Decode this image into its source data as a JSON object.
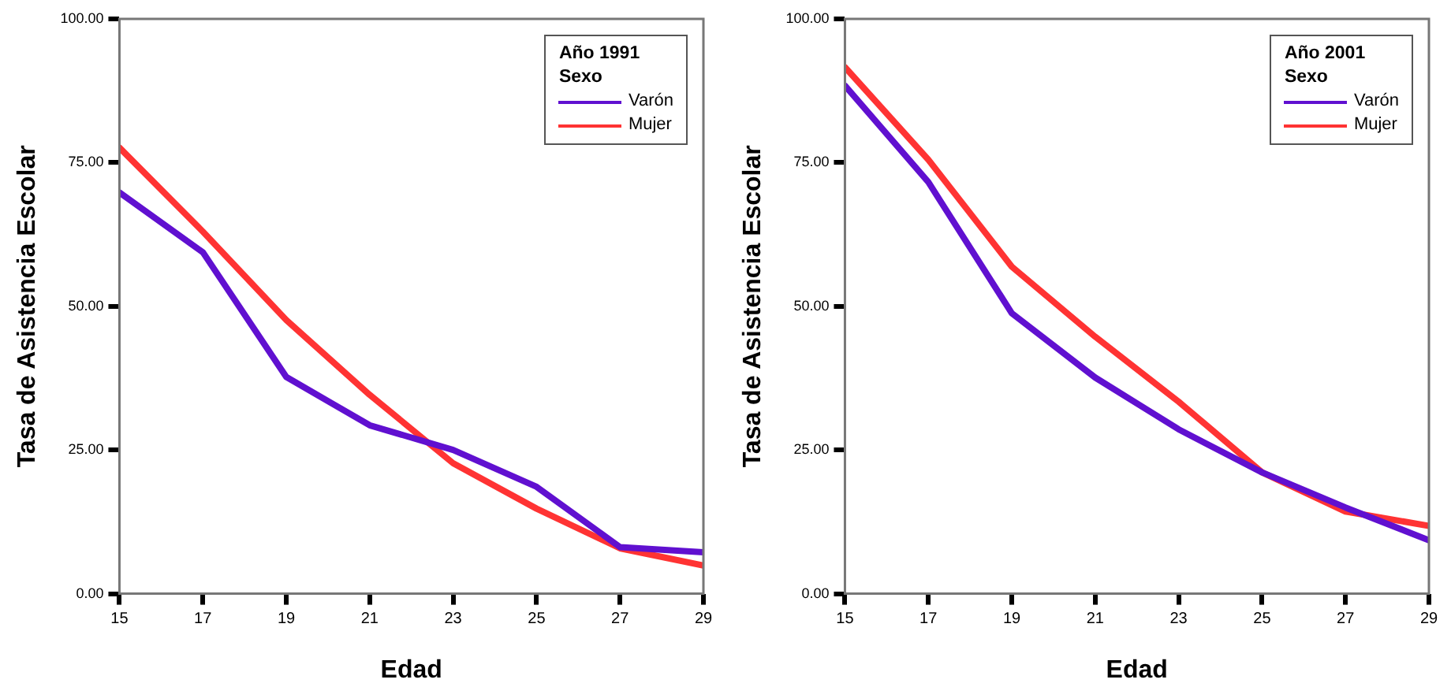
{
  "chart_data": [
    {
      "type": "line",
      "xlabel": "Edad",
      "ylabel": "Tasa de Asistencia Escolar",
      "legend_title": "Año 1991\nSexo",
      "legend": "top right",
      "grid": false,
      "marker": "none",
      "line_style": "solid",
      "x": [
        15,
        17,
        19,
        21,
        23,
        25,
        27,
        29
      ],
      "xlim": [
        15,
        29
      ],
      "xticks": [
        15,
        17,
        19,
        21,
        23,
        25,
        27,
        29
      ],
      "ylim": [
        0,
        100
      ],
      "yticks": [
        {
          "value": 0,
          "label": "0.00"
        },
        {
          "value": 25,
          "label": "25.00"
        },
        {
          "value": 50,
          "label": "50.00"
        },
        {
          "value": 75,
          "label": "75.00"
        },
        {
          "value": 100,
          "label": "100.00"
        }
      ],
      "series": [
        {
          "name": "Varón",
          "color": "#6010d0",
          "values": [
            69.8,
            59.4,
            37.7,
            29.3,
            25.0,
            18.6,
            8.1,
            7.2
          ]
        },
        {
          "name": "Mujer",
          "color": "#ff3333",
          "values": [
            77.6,
            63,
            47.6,
            34.6,
            22.7,
            14.8,
            7.9,
            4.9
          ]
        }
      ]
    },
    {
      "type": "line",
      "xlabel": "Edad",
      "ylabel": "Tasa de Asistencia Escolar",
      "legend_title": "Año 2001\nSexo",
      "legend": "top right",
      "grid": false,
      "marker": "none",
      "line_style": "solid",
      "x": [
        15,
        17,
        19,
        21,
        23,
        25,
        27,
        29
      ],
      "xlim": [
        15,
        29
      ],
      "xticks": [
        15,
        17,
        19,
        21,
        23,
        25,
        27,
        29
      ],
      "ylim": [
        0,
        100
      ],
      "yticks": [
        {
          "value": 0,
          "label": "0.00"
        },
        {
          "value": 25,
          "label": "25.00"
        },
        {
          "value": 50,
          "label": "50.00"
        },
        {
          "value": 75,
          "label": "75.00"
        },
        {
          "value": 100,
          "label": "100.00"
        }
      ],
      "series": [
        {
          "name": "Varón",
          "color": "#6010d0",
          "values": [
            88.4,
            71.6,
            48.8,
            37.6,
            28.6,
            21.1,
            15.0,
            9.3
          ]
        },
        {
          "name": "Mujer",
          "color": "#ff3333",
          "values": [
            91.6,
            75.5,
            56.9,
            44.7,
            33.4,
            21.1,
            14.3,
            11.8
          ]
        }
      ]
    }
  ]
}
